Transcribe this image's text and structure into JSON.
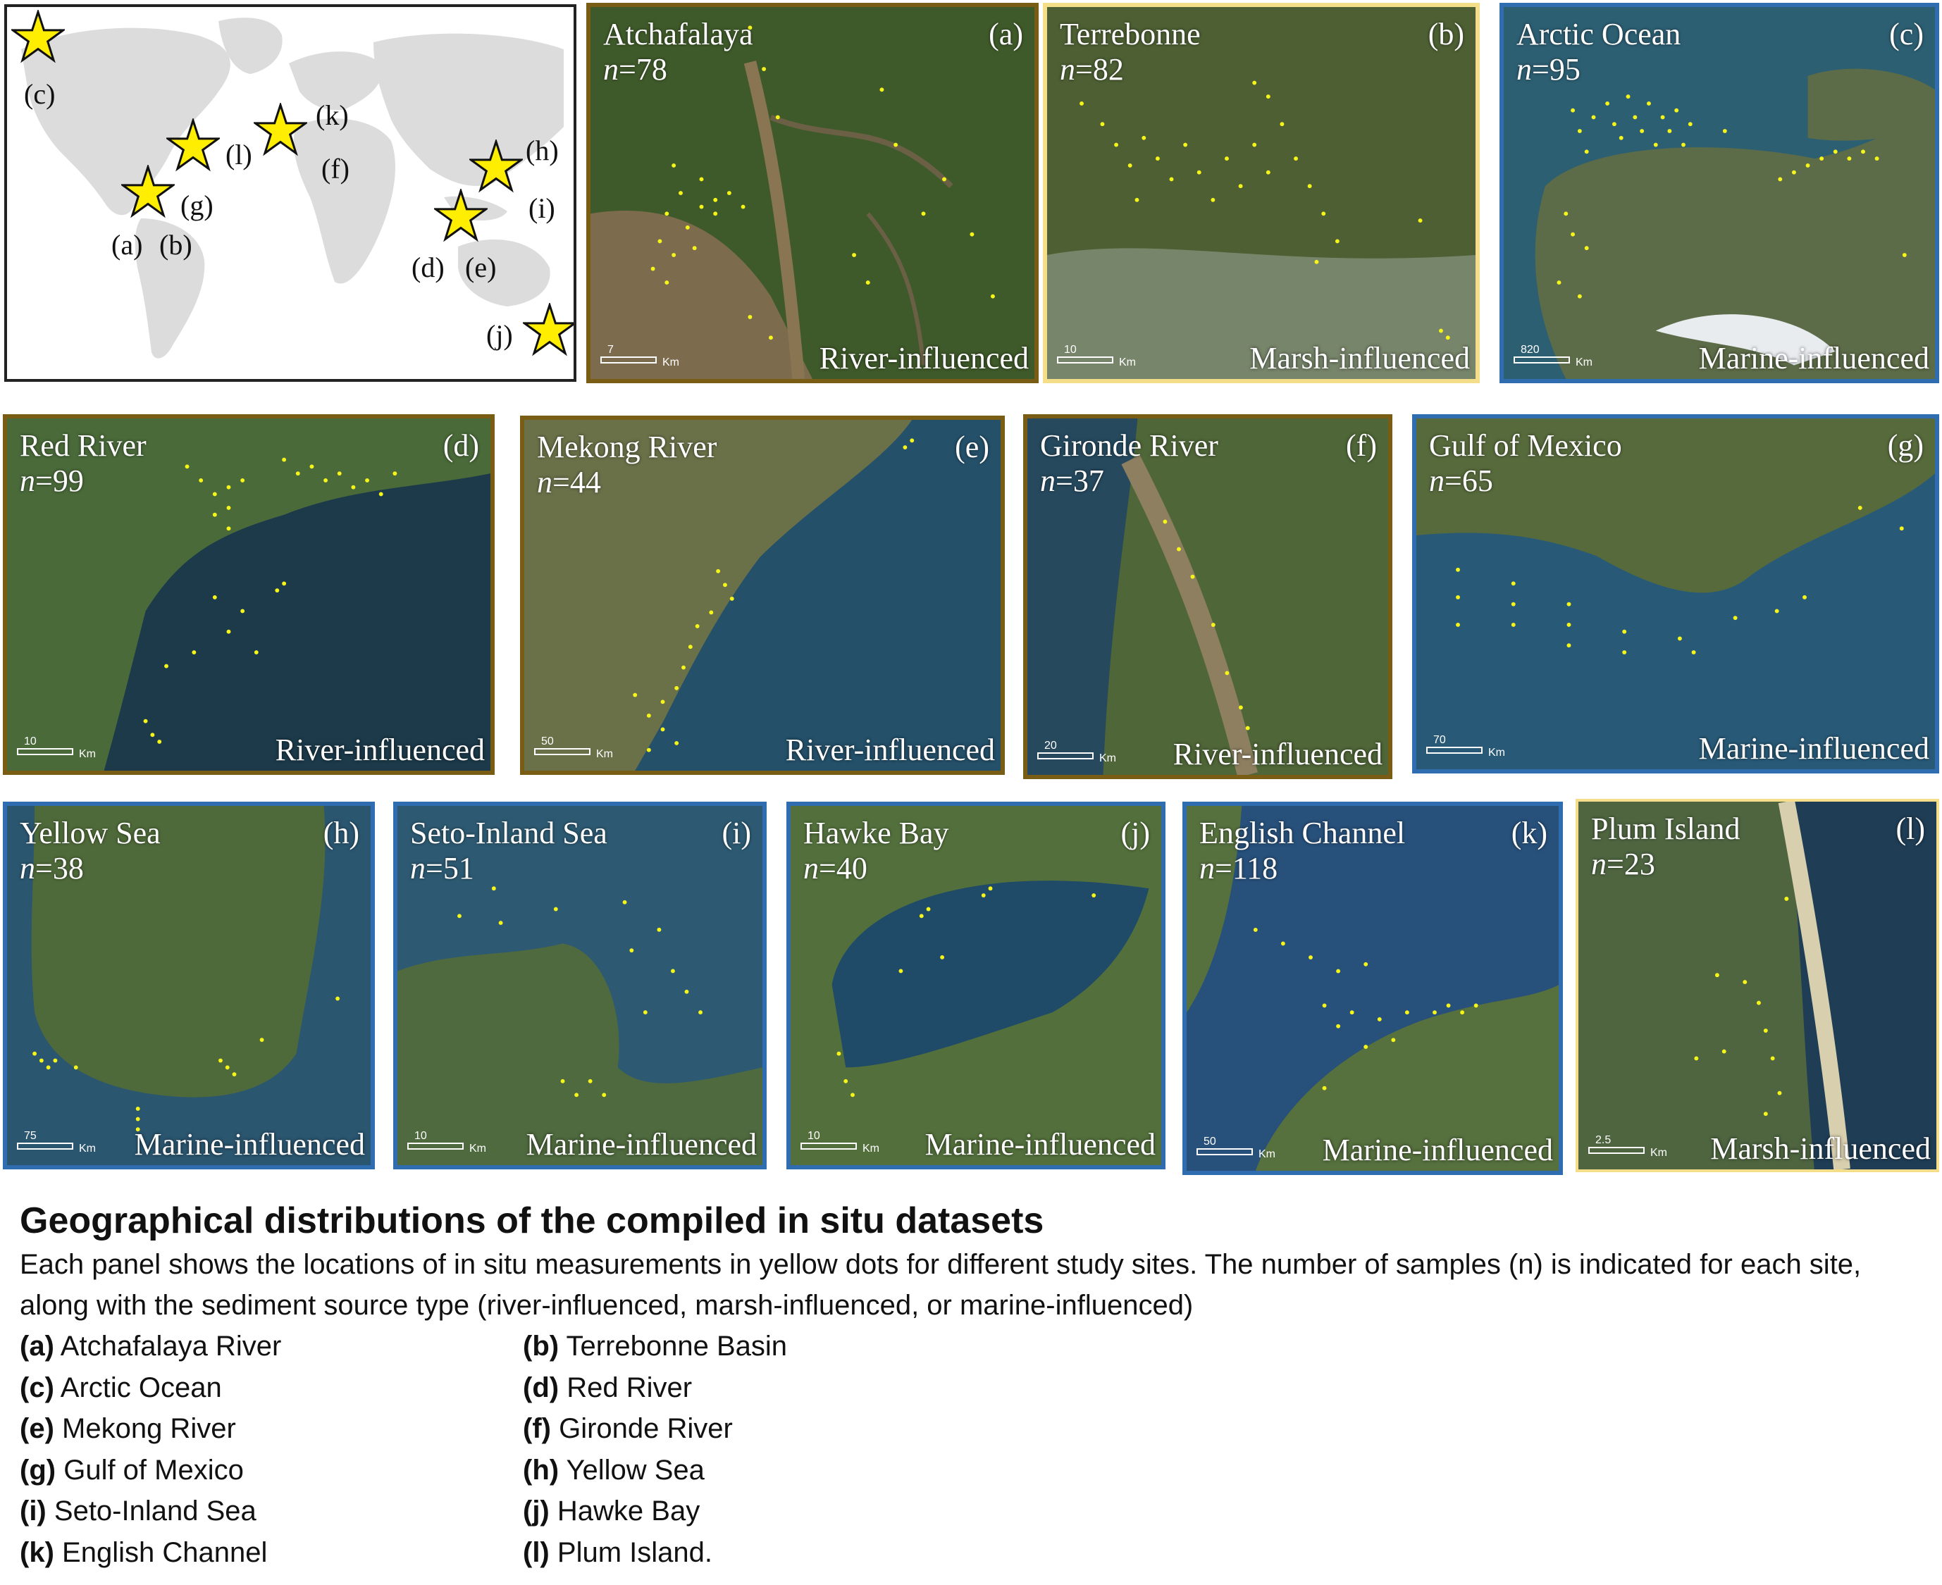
{
  "world_map": {
    "labels": {
      "a": "(a)",
      "b": "(b)",
      "c": "(c)",
      "d": "(d)",
      "e": "(e)",
      "f": "(f)",
      "g": "(g)",
      "h": "(h)",
      "i": "(i)",
      "j": "(j)",
      "k": "(k)",
      "l": "(l)"
    }
  },
  "panels": [
    {
      "id": "a",
      "title": "Atchafalaya",
      "n_label": "n",
      "n_value": "=78",
      "letter": "(a)",
      "type": "River-influenced",
      "scale_value": "7",
      "scale_unit": "Km",
      "border": "#7a5d14"
    },
    {
      "id": "b",
      "title": "Terrebonne",
      "n_label": "n",
      "n_value": "=82",
      "letter": "(b)",
      "type": "Marsh-influenced",
      "scale_value": "10",
      "scale_unit": "Km",
      "border": "#f4de8a"
    },
    {
      "id": "c",
      "title": "Arctic Ocean",
      "n_label": "n",
      "n_value": "=95",
      "letter": "(c)",
      "type": "Marine-influenced",
      "scale_value": "820",
      "scale_unit": "Km",
      "border": "#2f6cb0"
    },
    {
      "id": "d",
      "title": "Red River",
      "n_label": "n",
      "n_value": "=99",
      "letter": "(d)",
      "type": "River-influenced",
      "scale_value": "10",
      "scale_unit": "Km",
      "border": "#7a5d14"
    },
    {
      "id": "e",
      "title": "Mekong River",
      "n_label": "n",
      "n_value": "=44",
      "letter": "(e)",
      "type": "River-influenced",
      "scale_value": "50",
      "scale_unit": "Km",
      "border": "#7a5d14"
    },
    {
      "id": "f",
      "title": "Gironde River",
      "n_label": "n",
      "n_value": "=37",
      "letter": "(f)",
      "type": "River-influenced",
      "scale_value": "20",
      "scale_unit": "Km",
      "border": "#7a5d14"
    },
    {
      "id": "g",
      "title": "Gulf of Mexico",
      "n_label": "n",
      "n_value": "=65",
      "letter": "(g)",
      "type": "Marine-influenced",
      "scale_value": "70",
      "scale_unit": "Km",
      "border": "#2f6cb0"
    },
    {
      "id": "h",
      "title": "Yellow Sea",
      "n_label": "n",
      "n_value": "=38",
      "letter": "(h)",
      "type": "Marine-influenced",
      "scale_value": "75",
      "scale_unit": "Km",
      "border": "#2f6cb0"
    },
    {
      "id": "i",
      "title": "Seto-Inland Sea",
      "n_label": "n",
      "n_value": "=51",
      "letter": "(i)",
      "type": "Marine-influenced",
      "scale_value": "10",
      "scale_unit": "Km",
      "border": "#2f6cb0"
    },
    {
      "id": "j",
      "title": "Hawke Bay",
      "n_label": "n",
      "n_value": "=40",
      "letter": "(j)",
      "type": "Marine-influenced",
      "scale_value": "10",
      "scale_unit": "Km",
      "border": "#2f6cb0"
    },
    {
      "id": "k",
      "title": "English Channel",
      "n_label": "n",
      "n_value": "=118",
      "letter": "(k)",
      "type": "Marine-influenced",
      "scale_value": "50",
      "scale_unit": "Km",
      "border": "#2f6cb0"
    },
    {
      "id": "l",
      "title": "Plum Island",
      "n_label": "n",
      "n_value": "=23",
      "letter": "(l)",
      "type": "Marsh-influenced",
      "scale_value": "2.5",
      "scale_unit": "Km",
      "border": "#f4de8a"
    }
  ],
  "caption": {
    "title": "Geographical distributions of the compiled in situ datasets",
    "body": "Each panel shows the locations of in situ measurements in yellow dots for different study sites. The number of samples (n) is indicated for each site, along with the sediment source type (river-influenced, marsh-influenced, or marine-influenced)",
    "legend": [
      {
        "key": "(a)",
        "text": "Atchafalaya River"
      },
      {
        "key": "(b)",
        "text": "Terrebonne Basin"
      },
      {
        "key": "(c)",
        "text": "Arctic Ocean"
      },
      {
        "key": "(d)",
        "text": "Red River"
      },
      {
        "key": "(e)",
        "text": "Mekong River"
      },
      {
        "key": "(f)",
        "text": "Gironde River"
      },
      {
        "key": "(g)",
        "text": "Gulf of Mexico"
      },
      {
        "key": "(h)",
        "text": "Yellow Sea"
      },
      {
        "key": "(i)",
        "text": "Seto-Inland Sea"
      },
      {
        "key": "(j)",
        "text": "Hawke Bay"
      },
      {
        "key": "(k)",
        "text": "English Channel"
      },
      {
        "key": "(l)",
        "text": "Plum Island."
      }
    ]
  },
  "colors": {
    "sample_dot": "#f5f51a",
    "star_fill": "#ffee00",
    "river_border": "#7a5d14",
    "marsh_border": "#f4de8a",
    "marine_border": "#2f6cb0"
  }
}
